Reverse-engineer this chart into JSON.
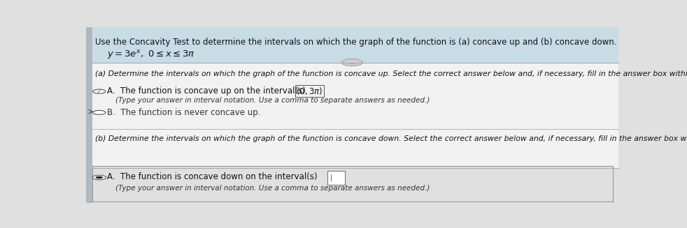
{
  "title_text": "Use the Concavity Test to determine the intervals on which the graph of the function is (a) concave up and (b) concave down.",
  "function_line": "y = 3e^x, 0 ≤ x ≤ 3π",
  "part_a_label": "(a) Determine the intervals on which the graph of the function is concave up. Select the correct answer below and, if necessary, fill in the answer box within your choice.",
  "option_a_text": "A.  The function is concave up on the interval(s)  (0,3π)",
  "option_a_sub": "(Type your answer in interval notation. Use a comma to separate answers as needed.)",
  "option_b_text": "B.  The function is never concave up.",
  "part_b_label": "(b) Determine the intervals on which the graph of the function is concave down. Select the correct answer below and, if necessary, fill in the answer box within your choice.",
  "option_b2_text": "A.  The function is concave down on the interval(s)",
  "option_b2_sub": "(Type your answer in interval notation. Use a comma to separate answers as needed.)",
  "bg_top": "#c8dce6",
  "bg_main": "#f2f2f2",
  "bg_bottom_box": "#e0e0e0",
  "left_bar_color": "#b0b8c0",
  "divider_color": "#aaaaaa",
  "text_color": "#111111",
  "sub_text_color": "#333333"
}
